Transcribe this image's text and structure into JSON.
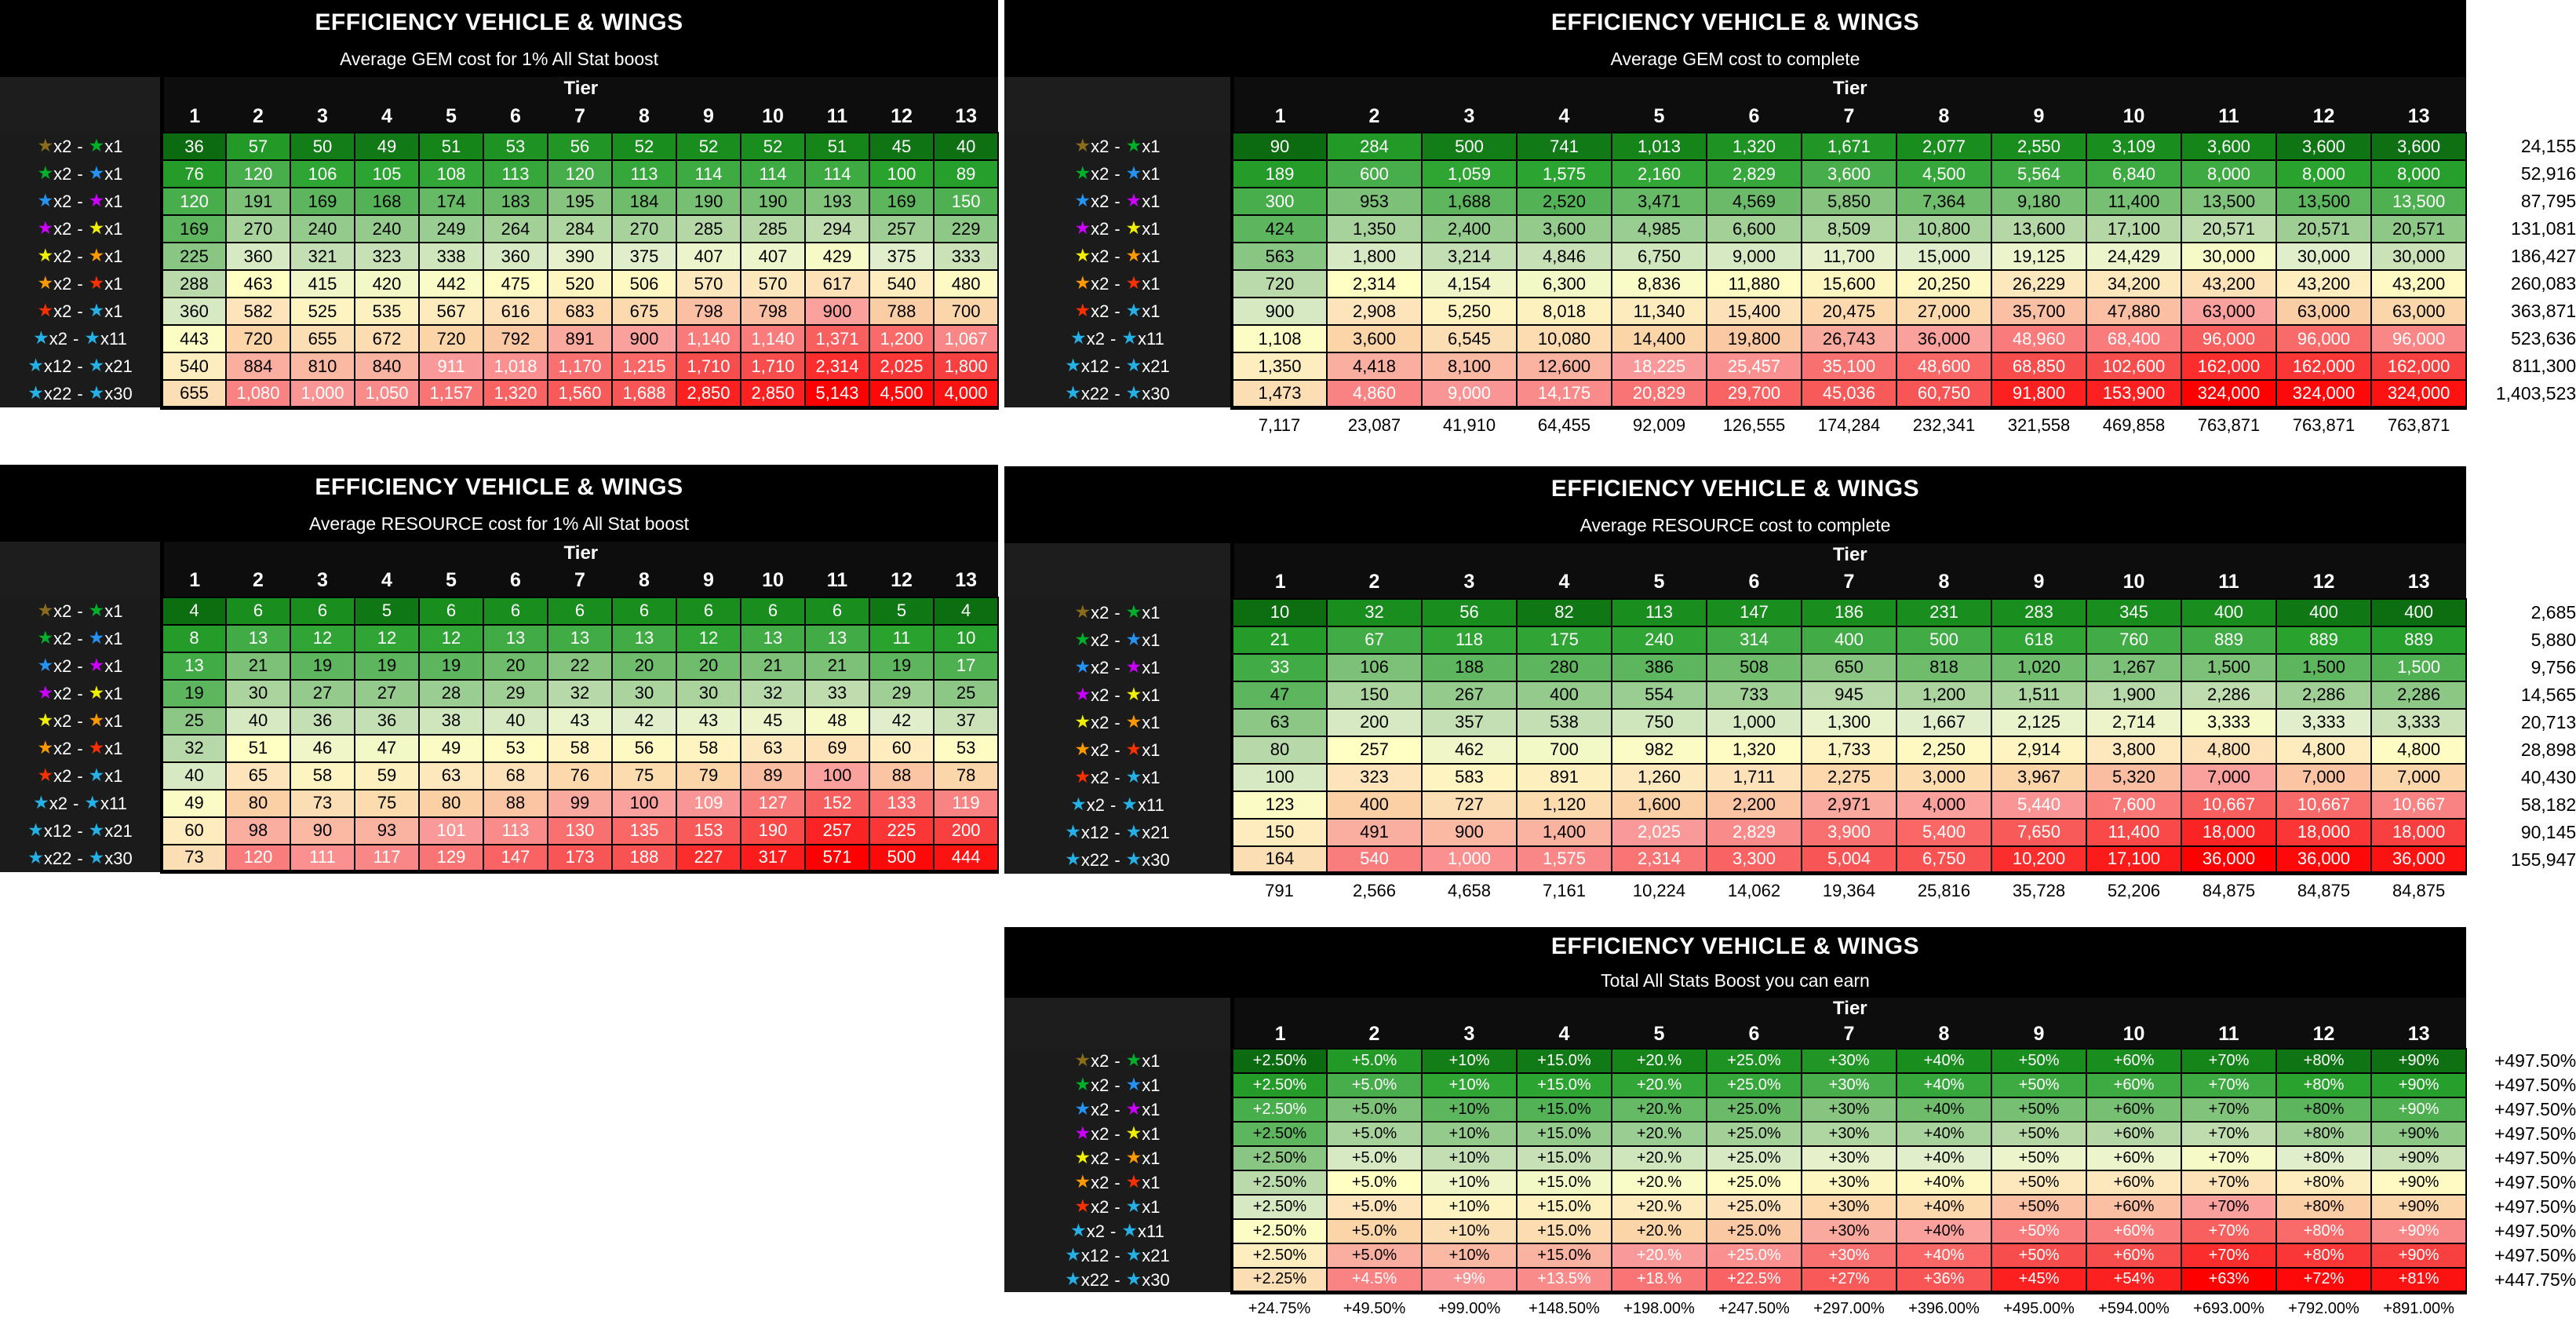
{
  "glyphs": {
    "star": "★",
    "separator": "-"
  },
  "palette": {
    "page_bg": "#ffffff",
    "title_bg": "#000000",
    "header_bg": "#0d0d0d",
    "label_column_bg": "#1b1b1b",
    "grid_line": "#000000",
    "heat_stops": [
      [
        0.0,
        "#0c6b10"
      ],
      [
        0.05,
        "#17891c"
      ],
      [
        0.12,
        "#2aa32f"
      ],
      [
        0.2,
        "#4aae4d"
      ],
      [
        0.3,
        "#85c47f"
      ],
      [
        0.4,
        "#b9d9aa"
      ],
      [
        0.48,
        "#e3efcc"
      ],
      [
        0.55,
        "#ffffc4"
      ],
      [
        0.64,
        "#fde5bc"
      ],
      [
        0.72,
        "#fbd3a6"
      ],
      [
        0.8,
        "#fa9d9d"
      ],
      [
        0.87,
        "#f97373"
      ],
      [
        0.93,
        "#f85252"
      ],
      [
        1.0,
        "#fe0000"
      ]
    ],
    "white_text_below": 0.21,
    "white_text_above": 0.8
  },
  "row_labels": [
    {
      "star1": "#8a6d1c",
      "label1": "x2",
      "star2": "#00b02a",
      "label2": "x1"
    },
    {
      "star1": "#00b02a",
      "label1": "x2",
      "star2": "#2493f2",
      "label2": "x1"
    },
    {
      "star1": "#2493f2",
      "label1": "x2",
      "star2": "#cc00ff",
      "label2": "x1"
    },
    {
      "star1": "#cc00ff",
      "label1": "x2",
      "star2": "#f0f000",
      "label2": "x1"
    },
    {
      "star1": "#f0f000",
      "label1": "x2",
      "star2": "#ff9900",
      "label2": "x1"
    },
    {
      "star1": "#ff9900",
      "label1": "x2",
      "star2": "#f93000",
      "label2": "x1"
    },
    {
      "star1": "#f93000",
      "label1": "x2",
      "star2": "#25b1e6",
      "label2": "x1"
    },
    {
      "star1": "#25b1e6",
      "label1": "x2",
      "star2": "#25b1e6",
      "label2": "x11"
    },
    {
      "star1": "#25b1e6",
      "label1": "x12",
      "star2": "#25b1e6",
      "label2": "x21"
    },
    {
      "star1": "#25b1e6",
      "label1": "x22",
      "star2": "#25b1e6",
      "label2": "x30"
    }
  ],
  "tables": [
    {
      "key": "gem-per-1pct",
      "col": "left",
      "compact": false,
      "color_from": "self",
      "title": "EFFICIENCY VEHICLE & WINGS",
      "subtitle": "Average GEM cost for 1% All Stat boost",
      "tier_label": "Tier",
      "columns": [
        "1",
        "2",
        "3",
        "4",
        "5",
        "6",
        "7",
        "8",
        "9",
        "10",
        "11",
        "12",
        "13"
      ],
      "rows": [
        [
          "36",
          "57",
          "50",
          "49",
          "51",
          "53",
          "56",
          "52",
          "52",
          "52",
          "51",
          "45",
          "40"
        ],
        [
          "76",
          "120",
          "106",
          "105",
          "108",
          "113",
          "120",
          "113",
          "114",
          "114",
          "114",
          "100",
          "89"
        ],
        [
          "120",
          "191",
          "169",
          "168",
          "174",
          "183",
          "195",
          "184",
          "190",
          "190",
          "193",
          "169",
          "150"
        ],
        [
          "169",
          "270",
          "240",
          "240",
          "249",
          "264",
          "284",
          "270",
          "285",
          "285",
          "294",
          "257",
          "229"
        ],
        [
          "225",
          "360",
          "321",
          "323",
          "338",
          "360",
          "390",
          "375",
          "407",
          "407",
          "429",
          "375",
          "333"
        ],
        [
          "288",
          "463",
          "415",
          "420",
          "442",
          "475",
          "520",
          "506",
          "570",
          "570",
          "617",
          "540",
          "480"
        ],
        [
          "360",
          "582",
          "525",
          "535",
          "567",
          "616",
          "683",
          "675",
          "798",
          "798",
          "900",
          "788",
          "700"
        ],
        [
          "443",
          "720",
          "655",
          "672",
          "720",
          "792",
          "891",
          "900",
          "1,140",
          "1,140",
          "1,371",
          "1,200",
          "1,067"
        ],
        [
          "540",
          "884",
          "810",
          "840",
          "911",
          "1,018",
          "1,170",
          "1,215",
          "1,710",
          "1,710",
          "2,314",
          "2,025",
          "1,800"
        ],
        [
          "655",
          "1,080",
          "1,000",
          "1,050",
          "1,157",
          "1,320",
          "1,560",
          "1,688",
          "2,850",
          "2,850",
          "5,143",
          "4,500",
          "4,000"
        ]
      ],
      "row_totals": null,
      "col_totals": null
    },
    {
      "key": "gem-complete",
      "col": "right",
      "compact": false,
      "color_from": "gem-per-1pct",
      "title": "EFFICIENCY VEHICLE & WINGS",
      "subtitle": "Average GEM cost to complete",
      "tier_label": "Tier",
      "columns": [
        "1",
        "2",
        "3",
        "4",
        "5",
        "6",
        "7",
        "8",
        "9",
        "10",
        "11",
        "12",
        "13"
      ],
      "rows": [
        [
          "90",
          "284",
          "500",
          "741",
          "1,013",
          "1,320",
          "1,671",
          "2,077",
          "2,550",
          "3,109",
          "3,600",
          "3,600",
          "3,600"
        ],
        [
          "189",
          "600",
          "1,059",
          "1,575",
          "2,160",
          "2,829",
          "3,600",
          "4,500",
          "5,564",
          "6,840",
          "8,000",
          "8,000",
          "8,000"
        ],
        [
          "300",
          "953",
          "1,688",
          "2,520",
          "3,471",
          "4,569",
          "5,850",
          "7,364",
          "9,180",
          "11,400",
          "13,500",
          "13,500",
          "13,500"
        ],
        [
          "424",
          "1,350",
          "2,400",
          "3,600",
          "4,985",
          "6,600",
          "8,509",
          "10,800",
          "13,600",
          "17,100",
          "20,571",
          "20,571",
          "20,571"
        ],
        [
          "563",
          "1,800",
          "3,214",
          "4,846",
          "6,750",
          "9,000",
          "11,700",
          "15,000",
          "19,125",
          "24,429",
          "30,000",
          "30,000",
          "30,000"
        ],
        [
          "720",
          "2,314",
          "4,154",
          "6,300",
          "8,836",
          "11,880",
          "15,600",
          "20,250",
          "26,229",
          "34,200",
          "43,200",
          "43,200",
          "43,200"
        ],
        [
          "900",
          "2,908",
          "5,250",
          "8,018",
          "11,340",
          "15,400",
          "20,475",
          "27,000",
          "35,700",
          "47,880",
          "63,000",
          "63,000",
          "63,000"
        ],
        [
          "1,108",
          "3,600",
          "6,545",
          "10,080",
          "14,400",
          "19,800",
          "26,743",
          "36,000",
          "48,960",
          "68,400",
          "96,000",
          "96,000",
          "96,000"
        ],
        [
          "1,350",
          "4,418",
          "8,100",
          "12,600",
          "18,225",
          "25,457",
          "35,100",
          "48,600",
          "68,850",
          "102,600",
          "162,000",
          "162,000",
          "162,000"
        ],
        [
          "1,473",
          "4,860",
          "9,000",
          "14,175",
          "20,829",
          "29,700",
          "45,036",
          "60,750",
          "91,800",
          "153,900",
          "324,000",
          "324,000",
          "324,000"
        ]
      ],
      "row_totals": [
        "24,155",
        "52,916",
        "87,795",
        "131,081",
        "186,427",
        "260,083",
        "363,871",
        "523,636",
        "811,300",
        "1,403,523"
      ],
      "col_totals": [
        "7,117",
        "23,087",
        "41,910",
        "64,455",
        "92,009",
        "126,555",
        "174,284",
        "232,341",
        "321,558",
        "469,858",
        "763,871",
        "763,871",
        "763,871"
      ]
    },
    {
      "key": "res-per-1pct",
      "col": "left",
      "compact": false,
      "color_from": "self",
      "title": "EFFICIENCY VEHICLE & WINGS",
      "subtitle": "Average RESOURCE cost for 1% All Stat boost",
      "tier_label": "Tier",
      "columns": [
        "1",
        "2",
        "3",
        "4",
        "5",
        "6",
        "7",
        "8",
        "9",
        "10",
        "11",
        "12",
        "13"
      ],
      "rows": [
        [
          "4",
          "6",
          "6",
          "5",
          "6",
          "6",
          "6",
          "6",
          "6",
          "6",
          "6",
          "5",
          "4"
        ],
        [
          "8",
          "13",
          "12",
          "12",
          "12",
          "13",
          "13",
          "13",
          "12",
          "13",
          "13",
          "11",
          "10"
        ],
        [
          "13",
          "21",
          "19",
          "19",
          "19",
          "20",
          "22",
          "20",
          "20",
          "21",
          "21",
          "19",
          "17"
        ],
        [
          "19",
          "30",
          "27",
          "27",
          "28",
          "29",
          "32",
          "30",
          "30",
          "32",
          "33",
          "29",
          "25"
        ],
        [
          "25",
          "40",
          "36",
          "36",
          "38",
          "40",
          "43",
          "42",
          "43",
          "45",
          "48",
          "42",
          "37"
        ],
        [
          "32",
          "51",
          "46",
          "47",
          "49",
          "53",
          "58",
          "56",
          "58",
          "63",
          "69",
          "60",
          "53"
        ],
        [
          "40",
          "65",
          "58",
          "59",
          "63",
          "68",
          "76",
          "75",
          "79",
          "89",
          "100",
          "88",
          "78"
        ],
        [
          "49",
          "80",
          "73",
          "75",
          "80",
          "88",
          "99",
          "100",
          "109",
          "127",
          "152",
          "133",
          "119"
        ],
        [
          "60",
          "98",
          "90",
          "93",
          "101",
          "113",
          "130",
          "135",
          "153",
          "190",
          "257",
          "225",
          "200"
        ],
        [
          "73",
          "120",
          "111",
          "117",
          "129",
          "147",
          "173",
          "188",
          "227",
          "317",
          "571",
          "500",
          "444"
        ]
      ],
      "row_totals": null,
      "col_totals": null
    },
    {
      "key": "res-complete",
      "col": "right",
      "compact": false,
      "color_from": "res-per-1pct",
      "title": "EFFICIENCY VEHICLE & WINGS",
      "subtitle": "Average RESOURCE cost to complete",
      "tier_label": "Tier",
      "columns": [
        "1",
        "2",
        "3",
        "4",
        "5",
        "6",
        "7",
        "8",
        "9",
        "10",
        "11",
        "12",
        "13"
      ],
      "rows": [
        [
          "10",
          "32",
          "56",
          "82",
          "113",
          "147",
          "186",
          "231",
          "283",
          "345",
          "400",
          "400",
          "400"
        ],
        [
          "21",
          "67",
          "118",
          "175",
          "240",
          "314",
          "400",
          "500",
          "618",
          "760",
          "889",
          "889",
          "889"
        ],
        [
          "33",
          "106",
          "188",
          "280",
          "386",
          "508",
          "650",
          "818",
          "1,020",
          "1,267",
          "1,500",
          "1,500",
          "1,500"
        ],
        [
          "47",
          "150",
          "267",
          "400",
          "554",
          "733",
          "945",
          "1,200",
          "1,511",
          "1,900",
          "2,286",
          "2,286",
          "2,286"
        ],
        [
          "63",
          "200",
          "357",
          "538",
          "750",
          "1,000",
          "1,300",
          "1,667",
          "2,125",
          "2,714",
          "3,333",
          "3,333",
          "3,333"
        ],
        [
          "80",
          "257",
          "462",
          "700",
          "982",
          "1,320",
          "1,733",
          "2,250",
          "2,914",
          "3,800",
          "4,800",
          "4,800",
          "4,800"
        ],
        [
          "100",
          "323",
          "583",
          "891",
          "1,260",
          "1,711",
          "2,275",
          "3,000",
          "3,967",
          "5,320",
          "7,000",
          "7,000",
          "7,000"
        ],
        [
          "123",
          "400",
          "727",
          "1,120",
          "1,600",
          "2,200",
          "2,971",
          "4,000",
          "5,440",
          "7,600",
          "10,667",
          "10,667",
          "10,667"
        ],
        [
          "150",
          "491",
          "900",
          "1,400",
          "2,025",
          "2,829",
          "3,900",
          "5,400",
          "7,650",
          "11,400",
          "18,000",
          "18,000",
          "18,000"
        ],
        [
          "164",
          "540",
          "1,000",
          "1,575",
          "2,314",
          "3,300",
          "5,004",
          "6,750",
          "10,200",
          "17,100",
          "36,000",
          "36,000",
          "36,000"
        ]
      ],
      "row_totals": [
        "2,685",
        "5,880",
        "9,756",
        "14,565",
        "20,713",
        "28,898",
        "40,430",
        "58,182",
        "90,145",
        "155,947"
      ],
      "col_totals": [
        "791",
        "2,566",
        "4,658",
        "7,161",
        "10,224",
        "14,062",
        "19,364",
        "25,816",
        "35,728",
        "52,206",
        "84,875",
        "84,875",
        "84,875"
      ]
    },
    {
      "key": "stats-boost",
      "col": "right",
      "compact": true,
      "color_from": "gem-per-1pct",
      "title": "EFFICIENCY VEHICLE & WINGS",
      "subtitle": "Total All Stats Boost you can earn",
      "tier_label": "Tier",
      "columns": [
        "1",
        "2",
        "3",
        "4",
        "5",
        "6",
        "7",
        "8",
        "9",
        "10",
        "11",
        "12",
        "13"
      ],
      "rows": [
        [
          "+2.50%",
          "+5.0%",
          "+10%",
          "+15.0%",
          "+20.%",
          "+25.0%",
          "+30%",
          "+40%",
          "+50%",
          "+60%",
          "+70%",
          "+80%",
          "+90%"
        ],
        [
          "+2.50%",
          "+5.0%",
          "+10%",
          "+15.0%",
          "+20.%",
          "+25.0%",
          "+30%",
          "+40%",
          "+50%",
          "+60%",
          "+70%",
          "+80%",
          "+90%"
        ],
        [
          "+2.50%",
          "+5.0%",
          "+10%",
          "+15.0%",
          "+20.%",
          "+25.0%",
          "+30%",
          "+40%",
          "+50%",
          "+60%",
          "+70%",
          "+80%",
          "+90%"
        ],
        [
          "+2.50%",
          "+5.0%",
          "+10%",
          "+15.0%",
          "+20.%",
          "+25.0%",
          "+30%",
          "+40%",
          "+50%",
          "+60%",
          "+70%",
          "+80%",
          "+90%"
        ],
        [
          "+2.50%",
          "+5.0%",
          "+10%",
          "+15.0%",
          "+20.%",
          "+25.0%",
          "+30%",
          "+40%",
          "+50%",
          "+60%",
          "+70%",
          "+80%",
          "+90%"
        ],
        [
          "+2.50%",
          "+5.0%",
          "+10%",
          "+15.0%",
          "+20.%",
          "+25.0%",
          "+30%",
          "+40%",
          "+50%",
          "+60%",
          "+70%",
          "+80%",
          "+90%"
        ],
        [
          "+2.50%",
          "+5.0%",
          "+10%",
          "+15.0%",
          "+20.%",
          "+25.0%",
          "+30%",
          "+40%",
          "+50%",
          "+60%",
          "+70%",
          "+80%",
          "+90%"
        ],
        [
          "+2.50%",
          "+5.0%",
          "+10%",
          "+15.0%",
          "+20.%",
          "+25.0%",
          "+30%",
          "+40%",
          "+50%",
          "+60%",
          "+70%",
          "+80%",
          "+90%"
        ],
        [
          "+2.50%",
          "+5.0%",
          "+10%",
          "+15.0%",
          "+20.%",
          "+25.0%",
          "+30%",
          "+40%",
          "+50%",
          "+60%",
          "+70%",
          "+80%",
          "+90%"
        ],
        [
          "+2.25%",
          "+4.5%",
          "+9%",
          "+13.5%",
          "+18.%",
          "+22.5%",
          "+27%",
          "+36%",
          "+45%",
          "+54%",
          "+63%",
          "+72%",
          "+81%"
        ]
      ],
      "row_totals": [
        "+497.50%",
        "+497.50%",
        "+497.50%",
        "+497.50%",
        "+497.50%",
        "+497.50%",
        "+497.50%",
        "+497.50%",
        "+497.50%",
        "+447.75%"
      ],
      "col_totals": [
        "+24.75%",
        "+49.50%",
        "+99.00%",
        "+148.50%",
        "+198.00%",
        "+247.50%",
        "+297.00%",
        "+396.00%",
        "+495.00%",
        "+594.00%",
        "+693.00%",
        "+792.00%",
        "+891.00%"
      ]
    }
  ]
}
